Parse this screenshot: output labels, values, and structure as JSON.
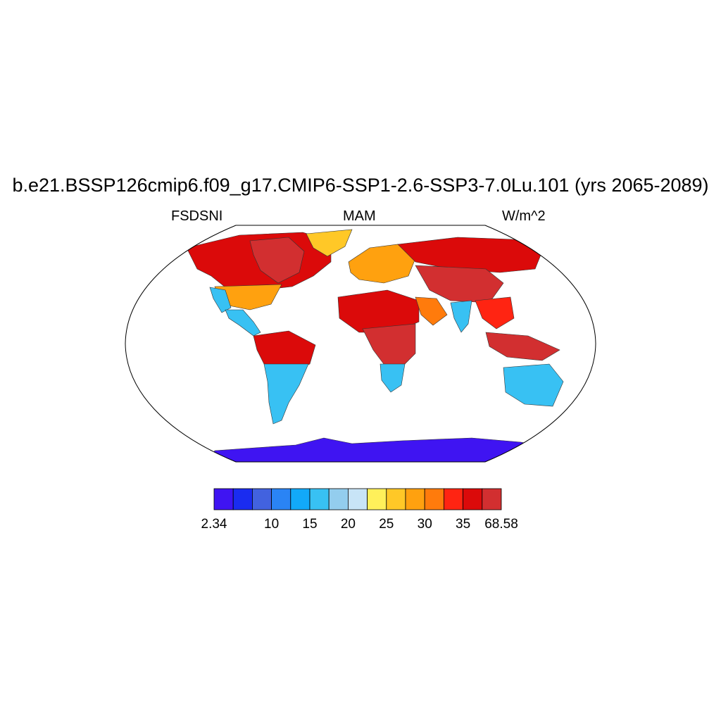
{
  "title": "b.e21.BSSP126cmip6.f09_g17.CMIP6-SSP1-2.6-SSP3-7.0Lu.101 (yrs 2065-2089)",
  "left_label": "FSDSNI",
  "center_label": "MAM",
  "right_label": "W/m^2",
  "chart_data": {
    "type": "heatmap",
    "projection": "robinson",
    "variable": "FSDSNI",
    "season": "MAM",
    "units": "W/m^2",
    "colorbar": {
      "min": 2.34,
      "max": 68.58,
      "tick_labels": [
        "2.34",
        "10",
        "15",
        "20",
        "25",
        "30",
        "35",
        "68.58"
      ],
      "colors": [
        "#3f14f2",
        "#1a2cf0",
        "#4262df",
        "#2a84f5",
        "#12a9f9",
        "#38c1f3",
        "#93cdee",
        "#c8e4f7",
        "#fff05a",
        "#ffc827",
        "#ffa10f",
        "#ff7b0c",
        "#ff2412",
        "#db0a0a",
        "#d22f30"
      ]
    },
    "regions": [
      {
        "name": "North America (north)",
        "level": 13
      },
      {
        "name": "Canadian Arctic / Hudson Bay",
        "level": 14
      },
      {
        "name": "United States",
        "level": 10
      },
      {
        "name": "US west coast",
        "level": 5
      },
      {
        "name": "Central America",
        "level": 5
      },
      {
        "name": "Greenland",
        "level": 9
      },
      {
        "name": "Amazon",
        "level": 13
      },
      {
        "name": "South America (south)",
        "level": 5
      },
      {
        "name": "Europe",
        "level": 10
      },
      {
        "name": "Siberia",
        "level": 13
      },
      {
        "name": "Central Asia / Tibet",
        "level": 14
      },
      {
        "name": "Sahara / Sahel",
        "level": 13
      },
      {
        "name": "Central Africa",
        "level": 14
      },
      {
        "name": "Southern Africa",
        "level": 5
      },
      {
        "name": "Arabia",
        "level": 11
      },
      {
        "name": "India",
        "level": 5
      },
      {
        "name": "Southeast Asia",
        "level": 12
      },
      {
        "name": "Maritime Continent",
        "level": 14
      },
      {
        "name": "Australia",
        "level": 5
      },
      {
        "name": "Antarctica",
        "level": 0
      }
    ]
  }
}
